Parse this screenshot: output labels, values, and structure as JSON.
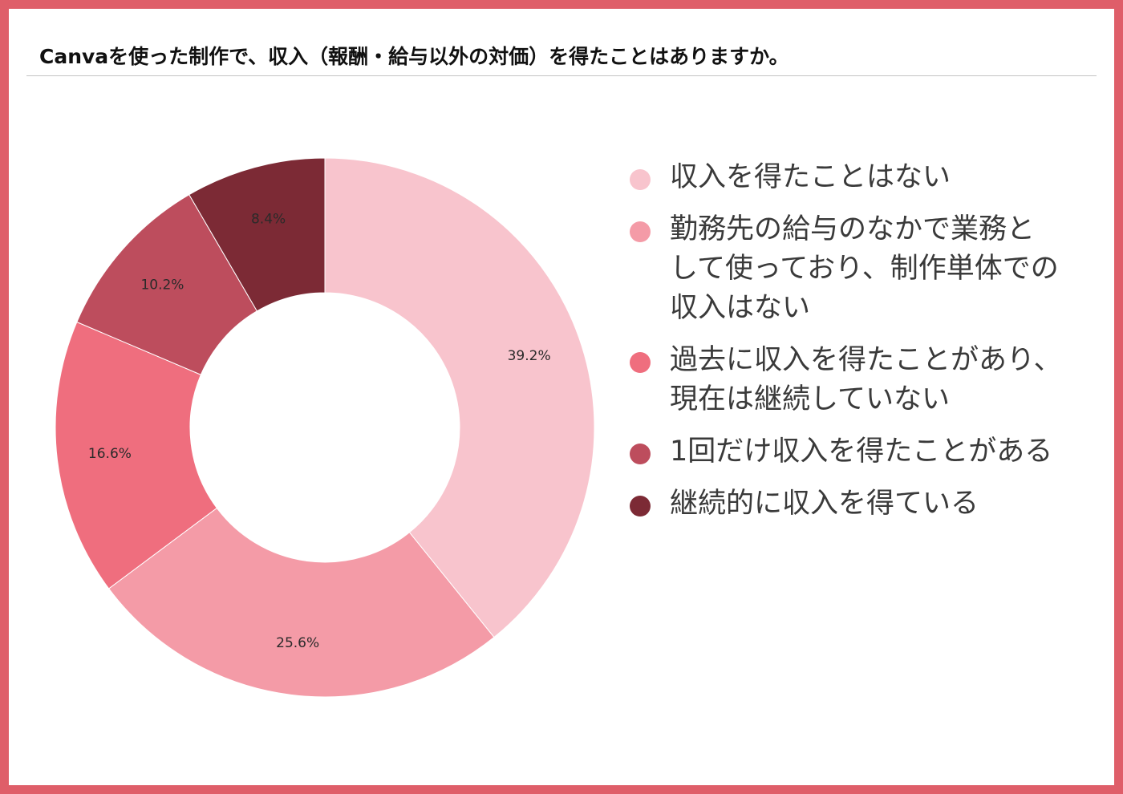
{
  "title": "Canvaを使った制作で、収入（報酬・給与以外の対価）を得たことはありますか。",
  "chart_data": {
    "type": "pie",
    "donut": true,
    "legend_position": "right",
    "categories": [
      "収入を得たことはない",
      "勤務先の給与のなかで業務と\nして使っており、制作単体での\n収入はない",
      "過去に収入を得たことがあり、\n現在は継続していない",
      "1回だけ収入を得たことがある",
      "継続的に収入を得ている"
    ],
    "values": [
      39.2,
      25.6,
      16.6,
      10.2,
      8.4
    ],
    "value_labels": [
      "39.2%",
      "25.6%",
      "16.6%",
      "10.2%",
      "8.4%"
    ],
    "colors": [
      "#f8c4cd",
      "#f49ba7",
      "#ef6e7e",
      "#bd4d5d",
      "#7c2a35"
    ]
  }
}
